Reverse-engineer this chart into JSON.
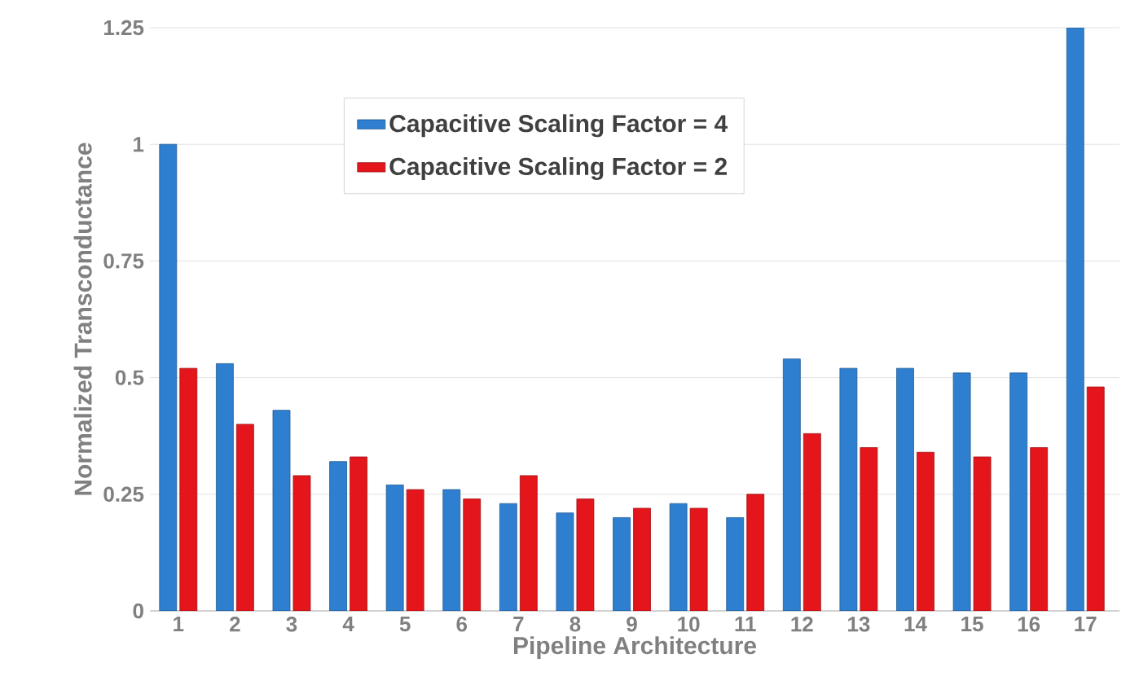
{
  "chart_data": {
    "type": "bar",
    "xlabel": "Pipeline Architecture",
    "ylabel": "Normalized Transconductance",
    "categories": [
      "1",
      "2",
      "3",
      "4",
      "5",
      "6",
      "7",
      "8",
      "9",
      "10",
      "11",
      "12",
      "13",
      "14",
      "15",
      "16",
      "17"
    ],
    "series": [
      {
        "name": "Capacitive Scaling Factor = 4",
        "color": "#2f7fd0",
        "values": [
          1,
          0.53,
          0.43,
          0.32,
          0.27,
          0.26,
          0.23,
          0.21,
          0.2,
          0.23,
          0.2,
          0.54,
          0.52,
          0.52,
          0.51,
          0.51,
          1.25
        ]
      },
      {
        "name": "Capacitive Scaling Factor = 2",
        "color": "#e5161b",
        "values": [
          0.52,
          0.4,
          0.29,
          0.33,
          0.26,
          0.24,
          0.29,
          0.24,
          0.22,
          0.22,
          0.25,
          0.38,
          0.35,
          0.34,
          0.33,
          0.35,
          0.48
        ]
      }
    ],
    "ylim": [
      0,
      1.25
    ],
    "yticks": [
      0,
      0.25,
      0.5,
      0.75,
      1,
      1.25
    ],
    "grid": "y",
    "legend": "top left"
  }
}
